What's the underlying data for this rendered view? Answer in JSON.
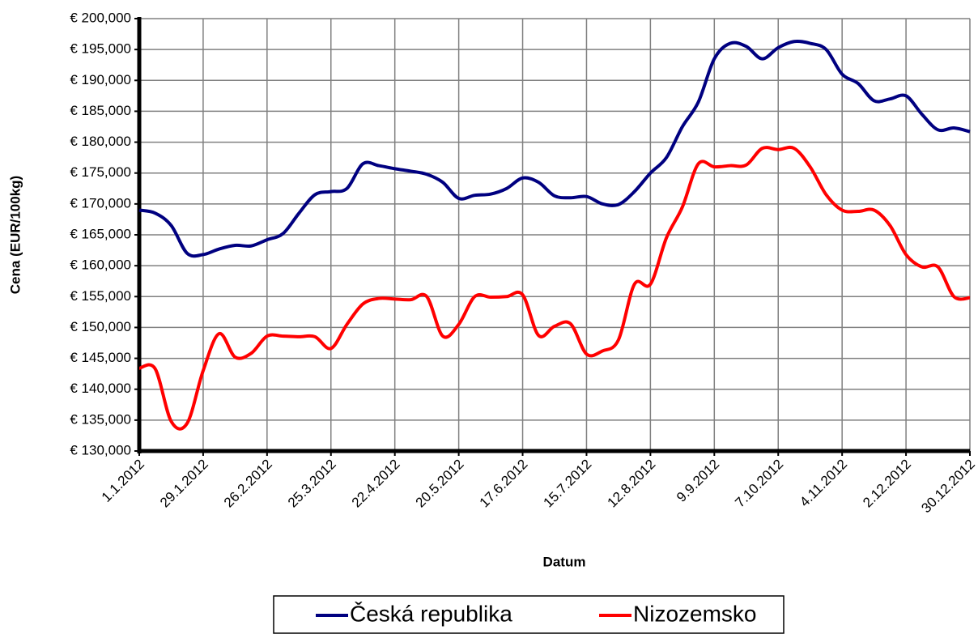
{
  "chart_data": {
    "type": "line",
    "x_label": "Datum",
    "y_label": "Cena (EUR/100kg)",
    "categories": [
      "1.1.2012",
      null,
      null,
      null,
      "29.1.2012",
      null,
      null,
      null,
      "26.2.2012",
      null,
      null,
      null,
      "25.3.2012",
      null,
      null,
      null,
      "22.4.2012",
      null,
      null,
      null,
      "20.5.2012",
      null,
      null,
      null,
      "17.6.2012",
      null,
      null,
      null,
      "15.7.2012",
      null,
      null,
      null,
      "12.8.2012",
      null,
      null,
      null,
      "9.9.2012",
      null,
      null,
      null,
      "7.10.2012",
      null,
      null,
      null,
      "4.11.2012",
      null,
      null,
      null,
      "2.12.2012",
      null,
      null,
      null,
      "30.12.2012"
    ],
    "series": [
      {
        "name": "Česká republika",
        "color": "#000080",
        "values": [
          169000,
          168500,
          166500,
          162000,
          161800,
          162700,
          163300,
          163200,
          164200,
          165200,
          168500,
          171500,
          172000,
          172500,
          176500,
          176200,
          175700,
          175300,
          174800,
          173500,
          170900,
          171400,
          171600,
          172500,
          174200,
          173500,
          171300,
          171000,
          171200,
          170000,
          169900,
          172000,
          175000,
          177500,
          182500,
          186500,
          193500,
          196000,
          195500,
          193500,
          195300,
          196300,
          196000,
          195000,
          191000,
          189500,
          186700,
          187000,
          187500,
          184500,
          182000,
          182300,
          181700
        ]
      },
      {
        "name": "Nizozemsko",
        "color": "#ff0000",
        "values": [
          143400,
          143300,
          134800,
          134500,
          143000,
          149000,
          145200,
          145800,
          148600,
          148600,
          148500,
          148500,
          146600,
          150500,
          153800,
          154700,
          154600,
          154500,
          155000,
          148600,
          150500,
          155000,
          154900,
          155000,
          155300,
          148700,
          150200,
          150600,
          145700,
          146200,
          148000,
          157000,
          157000,
          164500,
          169500,
          176500,
          176000,
          176200,
          176300,
          179000,
          178800,
          179000,
          176000,
          171500,
          169000,
          168800,
          169000,
          166500,
          161800,
          159800,
          159800,
          155000,
          154800
        ]
      }
    ],
    "ylim": [
      130000,
      200000
    ],
    "yticks": [
      {
        "value": 130000,
        "label": "€ 130,000"
      },
      {
        "value": 135000,
        "label": "€ 135,000"
      },
      {
        "value": 140000,
        "label": "€ 140,000"
      },
      {
        "value": 145000,
        "label": "€ 145,000"
      },
      {
        "value": 150000,
        "label": "€ 150,000"
      },
      {
        "value": 155000,
        "label": "€ 155,000"
      },
      {
        "value": 160000,
        "label": "€ 160,000"
      },
      {
        "value": 165000,
        "label": "€ 165,000"
      },
      {
        "value": 170000,
        "label": "€ 170,000"
      },
      {
        "value": 175000,
        "label": "€ 175,000"
      },
      {
        "value": 180000,
        "label": "€ 180,000"
      },
      {
        "value": 185000,
        "label": "€ 185,000"
      },
      {
        "value": 190000,
        "label": "€ 190,000"
      },
      {
        "value": 195000,
        "label": "€ 195,000"
      },
      {
        "value": 200000,
        "label": "€ 200,000"
      }
    ],
    "grid": true,
    "legend": "bottom"
  }
}
